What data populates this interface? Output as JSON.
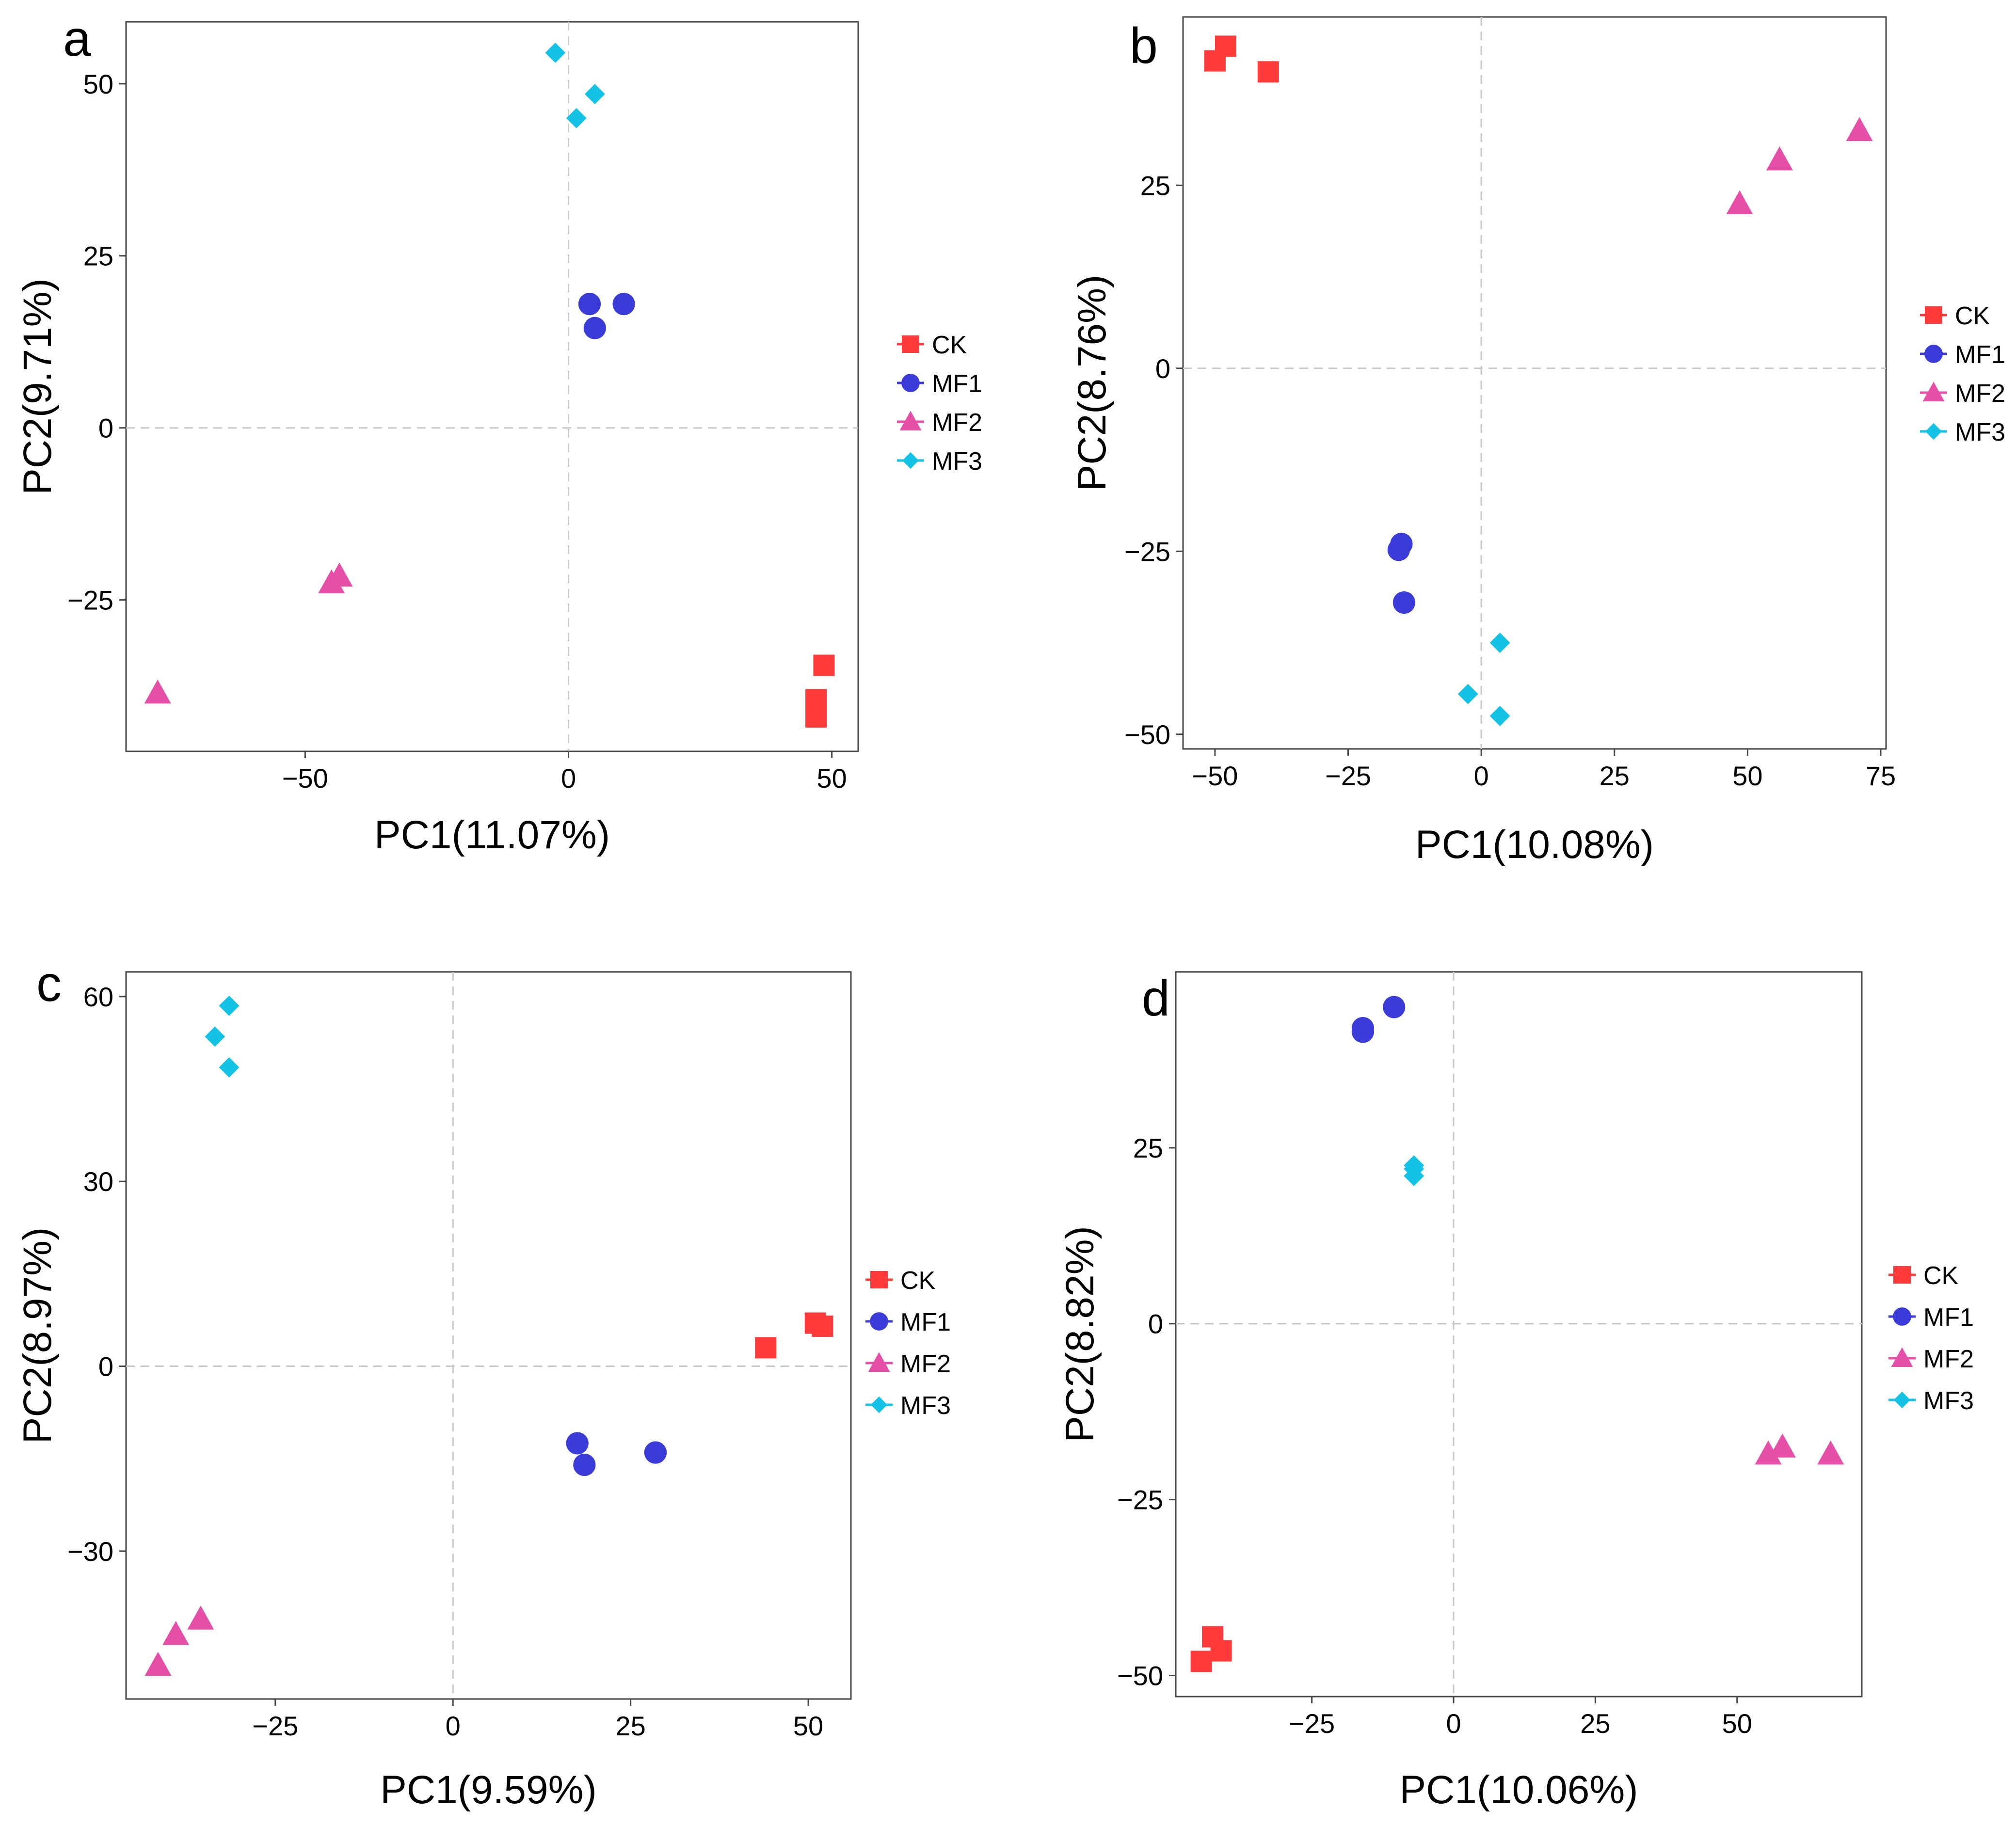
{
  "colors": {
    "CK": "#ff3b3b",
    "MF1": "#3b3bd8",
    "MF2": "#e64fa8",
    "MF3": "#14c2e6"
  },
  "legend": [
    "CK",
    "MF1",
    "MF2",
    "MF3"
  ],
  "chart_data": [
    {
      "panel": "a",
      "type": "scatter",
      "xlabel": "PC1(11.07%)",
      "ylabel": "PC2(9.71%)",
      "xlim": [
        -84,
        55
      ],
      "ylim": [
        -47,
        59
      ],
      "xticks": [
        -50,
        0,
        50
      ],
      "yticks": [
        -25,
        0,
        25,
        50
      ],
      "series": [
        {
          "name": "CK",
          "marker": "square",
          "points": [
            [
              48.5,
              -34.5
            ],
            [
              47,
              -39.5
            ],
            [
              47,
              -42
            ]
          ]
        },
        {
          "name": "MF1",
          "marker": "circle",
          "points": [
            [
              4,
              18
            ],
            [
              10.5,
              18
            ],
            [
              5,
              14.5
            ]
          ]
        },
        {
          "name": "MF2",
          "marker": "triangle",
          "points": [
            [
              -43.5,
              -21.5
            ],
            [
              -45,
              -22.5
            ],
            [
              -78,
              -38.5
            ]
          ]
        },
        {
          "name": "MF3",
          "marker": "diamond",
          "points": [
            [
              -2.5,
              54.5
            ],
            [
              5,
              48.5
            ],
            [
              1.5,
              45
            ]
          ]
        }
      ]
    },
    {
      "panel": "b",
      "type": "scatter",
      "xlabel": "PC1(10.08%)",
      "ylabel": "PC2(8.76%)",
      "xlim": [
        -56,
        76
      ],
      "ylim": [
        -52,
        48
      ],
      "xticks": [
        -50,
        -25,
        0,
        25,
        50,
        75
      ],
      "yticks": [
        -50,
        -25,
        0,
        25
      ],
      "series": [
        {
          "name": "CK",
          "marker": "square",
          "points": [
            [
              -48,
              44
            ],
            [
              -50,
              42
            ],
            [
              -40,
              40.5
            ]
          ]
        },
        {
          "name": "MF1",
          "marker": "circle",
          "points": [
            [
              -15,
              -24
            ],
            [
              -15.5,
              -24.8
            ],
            [
              -14.5,
              -32
            ]
          ]
        },
        {
          "name": "MF2",
          "marker": "triangle",
          "points": [
            [
              71,
              32.5
            ],
            [
              56,
              28.5
            ],
            [
              48.5,
              22.5
            ]
          ]
        },
        {
          "name": "MF3",
          "marker": "diamond",
          "points": [
            [
              3.5,
              -37.5
            ],
            [
              -2.5,
              -44.5
            ],
            [
              3.5,
              -47.5
            ]
          ]
        }
      ]
    },
    {
      "panel": "c",
      "type": "scatter",
      "xlabel": "PC1(9.59%)",
      "ylabel": "PC2(8.97%)",
      "xlim": [
        -46,
        56
      ],
      "ylim": [
        -54,
        64
      ],
      "xticks": [
        -25,
        0,
        25,
        50
      ],
      "yticks": [
        -30,
        0,
        30,
        60
      ],
      "series": [
        {
          "name": "CK",
          "marker": "square",
          "points": [
            [
              44,
              3
            ],
            [
              51,
              7
            ],
            [
              52,
              6.5
            ]
          ]
        },
        {
          "name": "MF1",
          "marker": "circle",
          "points": [
            [
              17.5,
              -12.5
            ],
            [
              18.5,
              -16
            ],
            [
              28.5,
              -14
            ]
          ]
        },
        {
          "name": "MF2",
          "marker": "triangle",
          "points": [
            [
              -35.5,
              -41
            ],
            [
              -39,
              -43.5
            ],
            [
              -41.5,
              -48.5
            ]
          ]
        },
        {
          "name": "MF3",
          "marker": "diamond",
          "points": [
            [
              -31.5,
              58.5
            ],
            [
              -33.5,
              53.5
            ],
            [
              -31.5,
              48.5
            ]
          ]
        }
      ]
    },
    {
      "panel": "d",
      "type": "scatter",
      "xlabel": "PC1(10.06%)",
      "ylabel": "PC2(8.82%)",
      "xlim": [
        -49,
        72
      ],
      "ylim": [
        -53,
        50
      ],
      "xticks": [
        -25,
        0,
        25,
        50
      ],
      "yticks": [
        -50,
        -25,
        0,
        25
      ],
      "series": [
        {
          "name": "CK",
          "marker": "square",
          "points": [
            [
              -42.5,
              -44.5
            ],
            [
              -41,
              -46.5
            ],
            [
              -44.5,
              -48
            ]
          ]
        },
        {
          "name": "MF1",
          "marker": "circle",
          "points": [
            [
              -10.5,
              45
            ],
            [
              -16,
              42
            ],
            [
              -16,
              41.5
            ]
          ]
        },
        {
          "name": "MF2",
          "marker": "triangle",
          "points": [
            [
              58,
              -17.5
            ],
            [
              55.5,
              -18.5
            ],
            [
              66.5,
              -18.5
            ]
          ]
        },
        {
          "name": "MF3",
          "marker": "diamond",
          "points": [
            [
              -7,
              22.5
            ],
            [
              -7,
              22
            ],
            [
              -7,
              21
            ]
          ]
        }
      ]
    }
  ]
}
